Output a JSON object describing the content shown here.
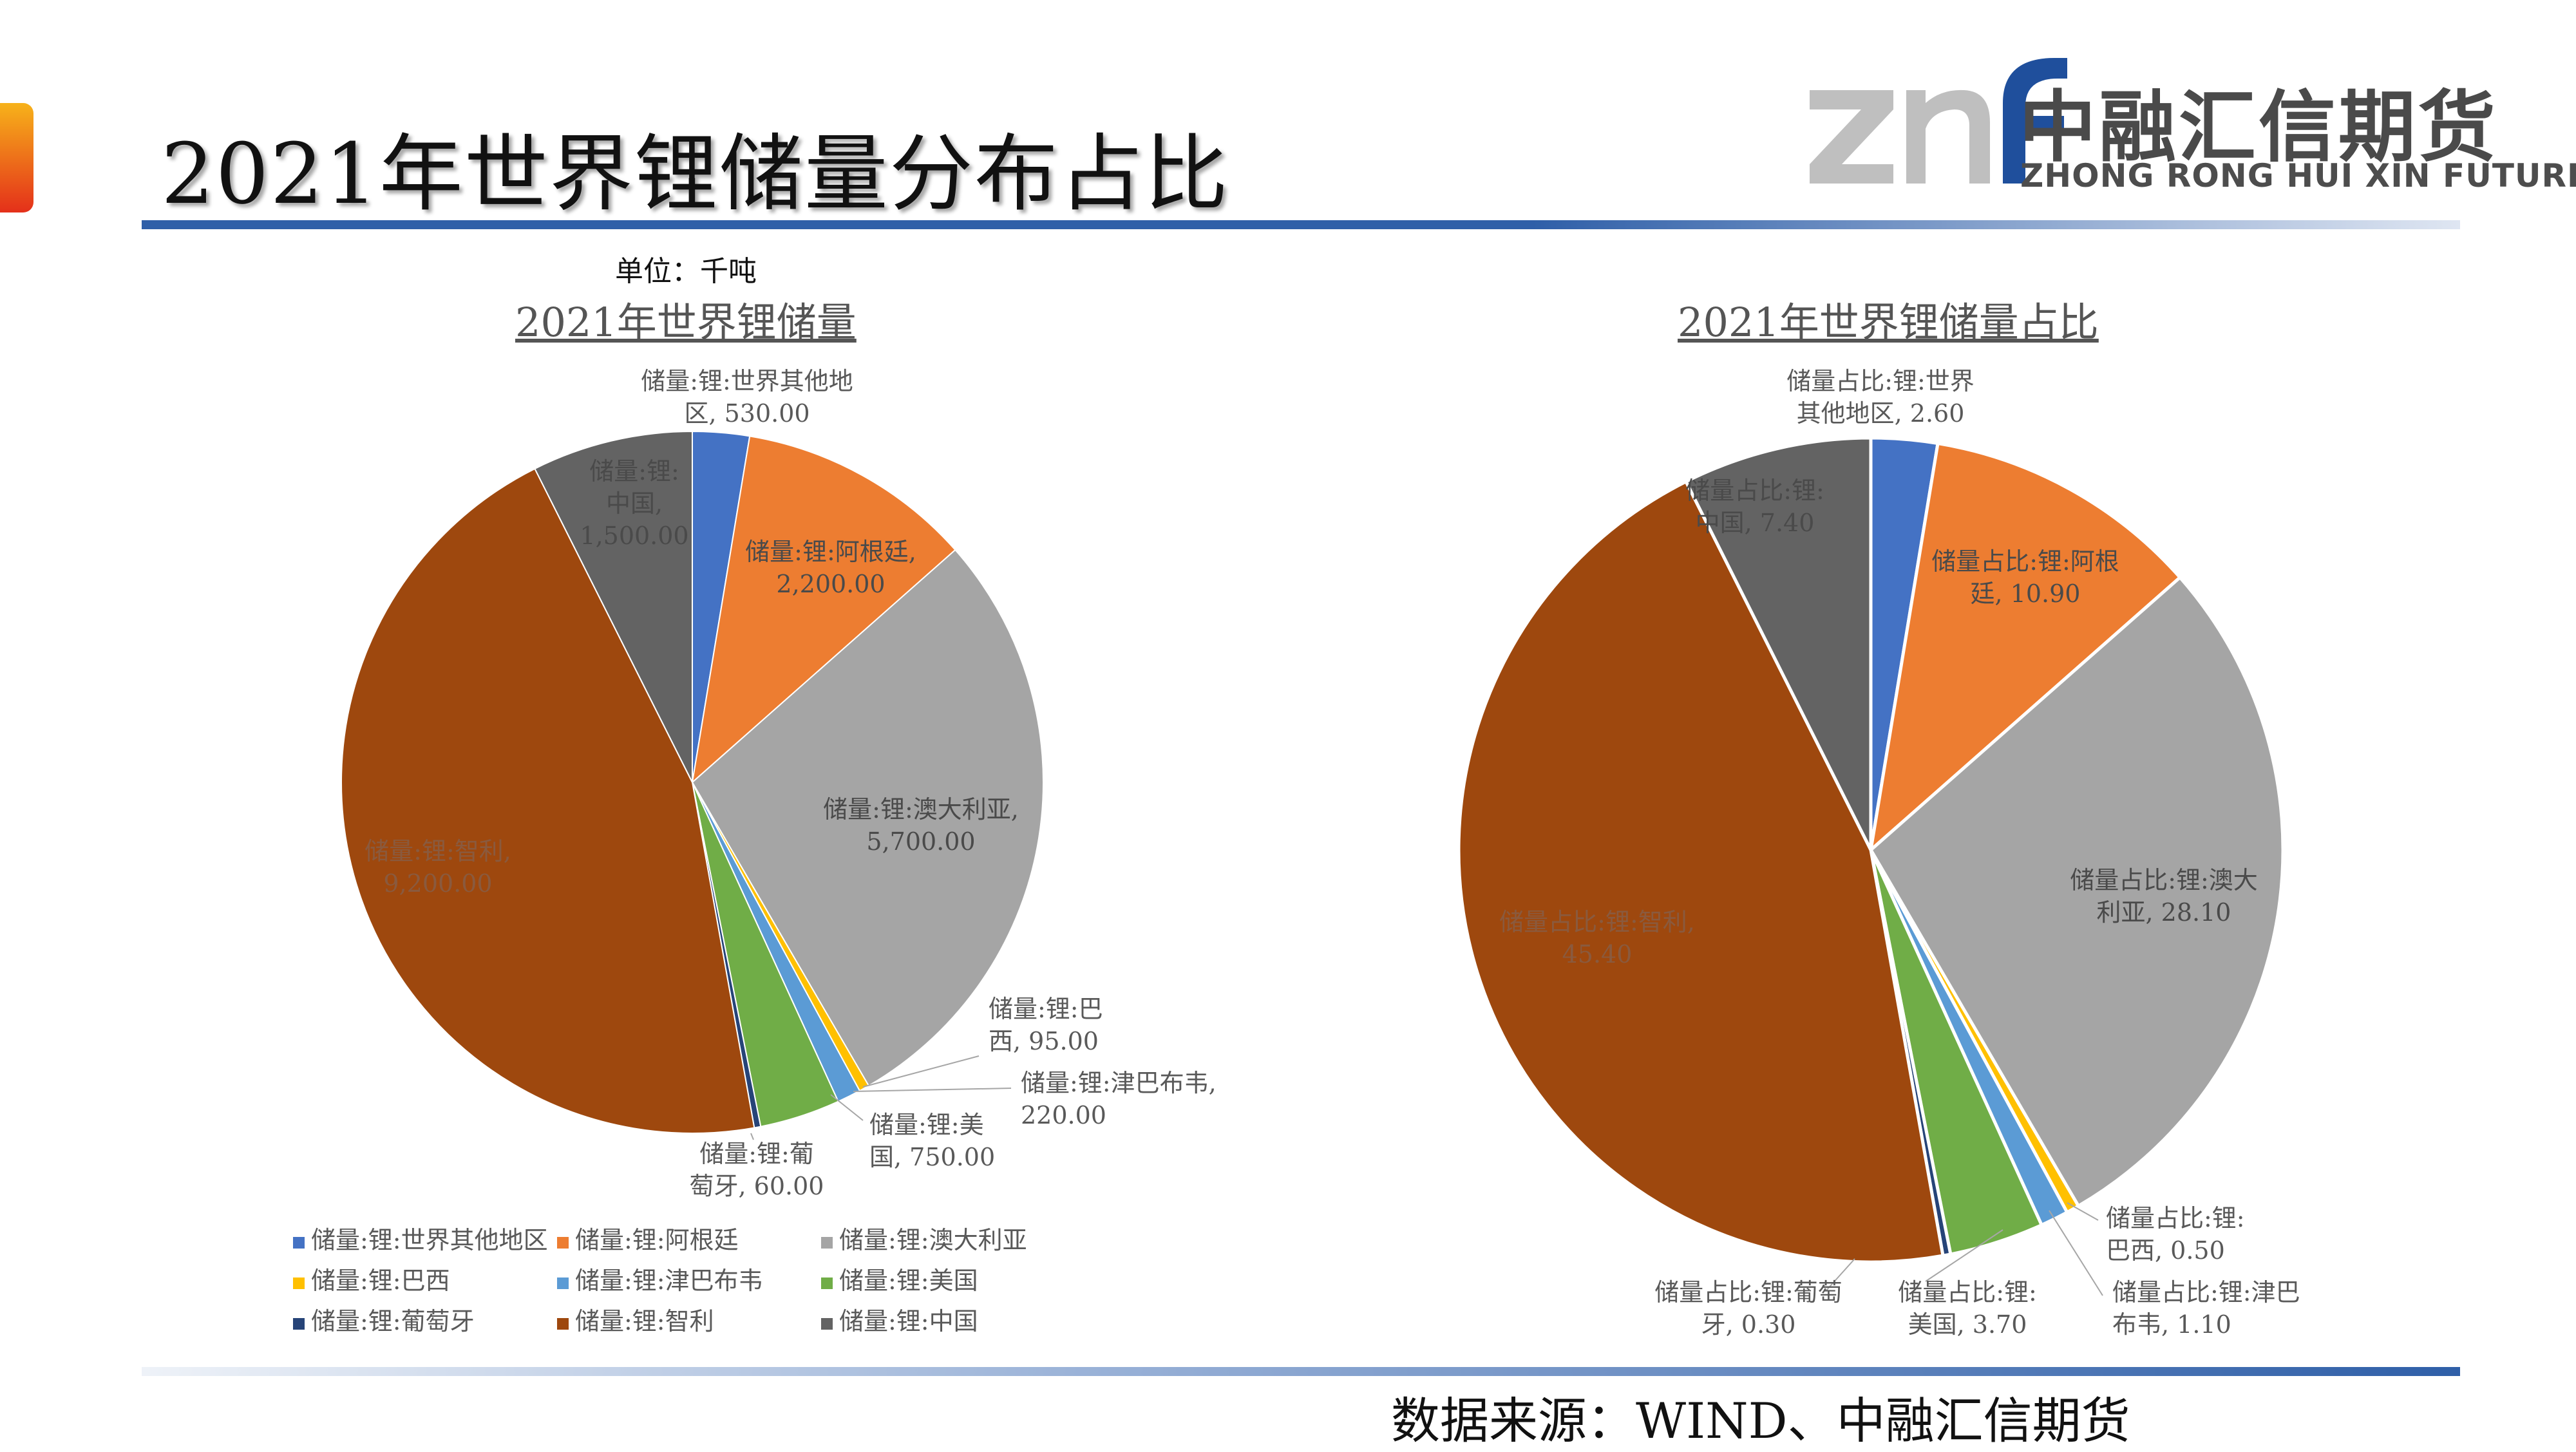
{
  "page": {
    "title": "2021年世界锂储量分布占比",
    "unit": "单位：千吨",
    "source": "数据来源：WIND、中融汇信期货"
  },
  "logo": {
    "mark": "znf",
    "name_cn": "中融汇信期货",
    "name_en": "ZHONG RONG HUI XIN FUTURES",
    "colors": {
      "mark_gray": "#bfbfbf",
      "mark_blue": "#1f4f9c",
      "text": "#4a4a4a"
    }
  },
  "colors": {
    "世界其他地区": "#4472c4",
    "阿根廷": "#ed7d31",
    "澳大利亚": "#a5a5a5",
    "巴西": "#ffc000",
    "津巴布韦": "#5b9bd5",
    "美国": "#70ad47",
    "葡萄牙": "#264478",
    "智利": "#9e480e",
    "中国": "#636363"
  },
  "chart_data": [
    {
      "type": "pie",
      "title": "2021年世界锂储量",
      "categories": [
        "世界其他地区",
        "阿根廷",
        "澳大利亚",
        "巴西",
        "津巴布韦",
        "美国",
        "葡萄牙",
        "智利",
        "中国"
      ],
      "values": [
        530,
        2200,
        5700,
        95,
        220,
        750,
        60,
        9200,
        1500
      ],
      "data_labels": [
        [
          "储量:锂:世界其他地",
          "区, 530.00"
        ],
        [
          "储量:锂:阿根廷,",
          "2,200.00"
        ],
        [
          "储量:锂:澳大利亚,",
          "5,700.00"
        ],
        [
          "储量:锂:巴",
          "西, 95.00"
        ],
        [
          "储量:锂:津巴布韦,",
          "220.00"
        ],
        [
          "储量:锂:美",
          "国, 750.00"
        ],
        [
          "储量:锂:葡",
          "萄牙, 60.00"
        ],
        [
          "储量:锂:智利,",
          "9,200.00"
        ],
        [
          "储量:锂:",
          "中国,",
          "1,500.00"
        ]
      ],
      "legend": {
        "position": "bottom",
        "entries": [
          "储量:锂:世界其他地区",
          "储量:锂:阿根廷",
          "储量:锂:澳大利亚",
          "储量:锂:巴西",
          "储量:锂:津巴布韦",
          "储量:锂:美国",
          "储量:锂:葡萄牙",
          "储量:锂:智利",
          "储量:锂:中国"
        ]
      }
    },
    {
      "type": "pie",
      "title": "2021年世界锂储量占比",
      "categories": [
        "世界其他地区",
        "阿根廷",
        "澳大利亚",
        "巴西",
        "津巴布韦",
        "美国",
        "葡萄牙",
        "智利",
        "中国"
      ],
      "values": [
        2.6,
        10.9,
        28.1,
        0.5,
        1.1,
        3.7,
        0.3,
        45.4,
        7.4
      ],
      "data_labels": [
        [
          "储量占比:锂:世界",
          "其他地区, 2.60"
        ],
        [
          "储量占比:锂:阿根",
          "廷, 10.90"
        ],
        [
          "储量占比:锂:澳大",
          "利亚, 28.10"
        ],
        [
          "储量占比:锂:",
          "巴西, 0.50"
        ],
        [
          "储量占比:锂:津巴",
          "布韦, 1.10"
        ],
        [
          "储量占比:锂:",
          "美国, 3.70"
        ],
        [
          "储量占比:锂:葡萄",
          "牙, 0.30"
        ],
        [
          "储量占比:锂:智利,",
          "45.40"
        ],
        [
          "储量占比:锂:",
          "中国, 7.40"
        ]
      ]
    }
  ]
}
